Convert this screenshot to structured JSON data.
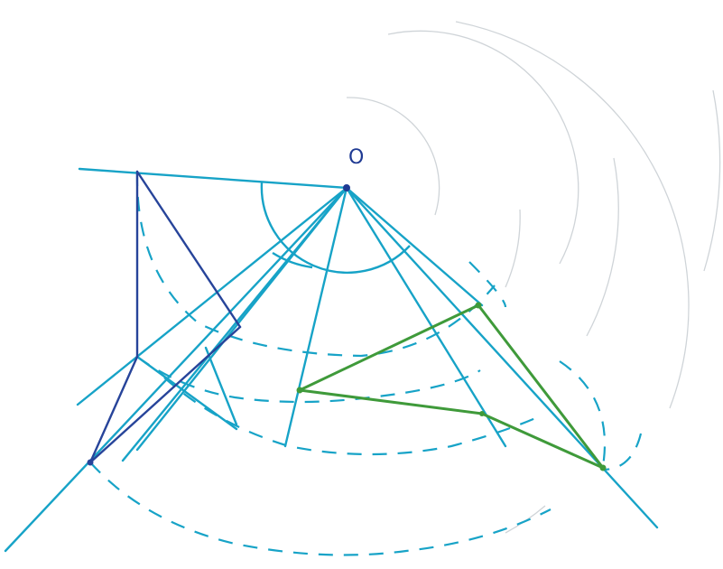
{
  "diagram": {
    "center_label": "O",
    "colors": {
      "construction": "#17a3c7",
      "guide_arc": "#cfd4d8",
      "original": "#27449a",
      "rotated": "#3f9a3a"
    }
  }
}
